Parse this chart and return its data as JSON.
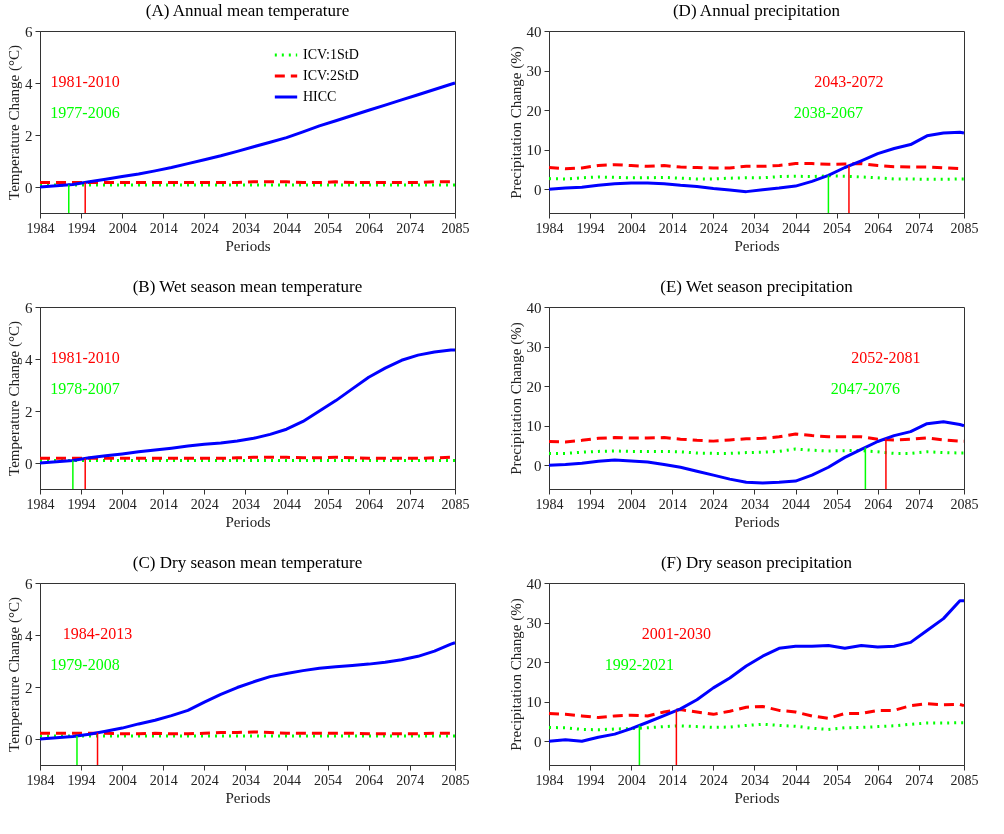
{
  "chart_data": [
    {
      "type": "line",
      "title": "(A) Annual mean temperature",
      "xlabel": "Periods",
      "ylabel": "Temperature Change (°C)",
      "x": [
        1984,
        1988,
        1992,
        1996,
        2000,
        2004,
        2008,
        2012,
        2016,
        2020,
        2024,
        2028,
        2032,
        2036,
        2040,
        2044,
        2048,
        2052,
        2056,
        2060,
        2064,
        2068,
        2072,
        2076,
        2080,
        2084,
        2085
      ],
      "xlim": [
        1984,
        2085
      ],
      "xticks": [
        1984,
        1994,
        2004,
        2014,
        2024,
        2034,
        2044,
        2054,
        2064,
        2074,
        2085
      ],
      "ylim": [
        -1,
        6
      ],
      "yticks": [
        0,
        2,
        4,
        6
      ],
      "legend": "top right",
      "series": [
        {
          "name": "ICV:1StD",
          "color": "#00ff00",
          "line_style": "dotted",
          "values": [
            0.08,
            0.08,
            0.08,
            0.08,
            0.08,
            0.08,
            0.08,
            0.08,
            0.08,
            0.08,
            0.08,
            0.08,
            0.08,
            0.08,
            0.08,
            0.08,
            0.08,
            0.08,
            0.08,
            0.08,
            0.08,
            0.08,
            0.08,
            0.08,
            0.08,
            0.08,
            0.08
          ]
        },
        {
          "name": "ICV:2StD",
          "color": "#ff0000",
          "line_style": "dashed",
          "values": [
            0.17,
            0.17,
            0.17,
            0.17,
            0.17,
            0.17,
            0.17,
            0.17,
            0.17,
            0.17,
            0.17,
            0.17,
            0.17,
            0.2,
            0.2,
            0.2,
            0.17,
            0.17,
            0.2,
            0.17,
            0.17,
            0.17,
            0.17,
            0.17,
            0.2,
            0.2,
            0.2
          ]
        },
        {
          "name": "HICC",
          "color": "#0000ff",
          "line_style": "solid",
          "values": [
            0,
            0.05,
            0.1,
            0.2,
            0.3,
            0.4,
            0.5,
            0.62,
            0.75,
            0.9,
            1.05,
            1.2,
            1.37,
            1.55,
            1.72,
            1.9,
            2.12,
            2.35,
            2.55,
            2.75,
            2.95,
            3.15,
            3.35,
            3.55,
            3.75,
            3.95,
            4.0
          ]
        }
      ],
      "ref_lines": [
        {
          "axis": "x",
          "value": 1991,
          "color": "#00ff00"
        },
        {
          "axis": "x",
          "value": 1995,
          "color": "#ff0000"
        }
      ],
      "annotations": [
        "1977-2006",
        "1981-2010"
      ]
    },
    {
      "type": "line",
      "title": "(D) Annual precipitation",
      "xlabel": "Periods",
      "ylabel": "Precipitation Change (%)",
      "x": [
        1984,
        1988,
        1992,
        1996,
        2000,
        2004,
        2008,
        2012,
        2016,
        2020,
        2024,
        2028,
        2032,
        2036,
        2040,
        2044,
        2048,
        2052,
        2056,
        2060,
        2064,
        2068,
        2072,
        2076,
        2080,
        2084,
        2085
      ],
      "xlim": [
        1984,
        2085
      ],
      "xticks": [
        1984,
        1994,
        2004,
        2014,
        2024,
        2034,
        2044,
        2054,
        2064,
        2074,
        2085
      ],
      "ylim": [
        -6,
        40
      ],
      "yticks": [
        0,
        10,
        20,
        30,
        40
      ],
      "series": [
        {
          "color": "#00ff00",
          "line_style": "dotted",
          "values": [
            2.7,
            2.6,
            2.9,
            3.1,
            3.0,
            2.9,
            2.9,
            3.0,
            2.8,
            2.6,
            2.6,
            2.8,
            2.9,
            2.9,
            3.2,
            3.3,
            3.2,
            3.4,
            3.3,
            3.1,
            2.9,
            2.6,
            2.6,
            2.5,
            2.5,
            2.6,
            2.6
          ]
        },
        {
          "color": "#ff0000",
          "line_style": "dashed",
          "values": [
            5.5,
            5.2,
            5.4,
            6.0,
            6.2,
            6.0,
            5.8,
            6.0,
            5.6,
            5.5,
            5.4,
            5.4,
            5.8,
            5.8,
            6.0,
            6.5,
            6.5,
            6.3,
            6.4,
            6.5,
            6.0,
            5.7,
            5.6,
            5.6,
            5.4,
            5.2,
            5.2
          ]
        },
        {
          "color": "#0000ff",
          "line_style": "solid",
          "values": [
            0,
            0.3,
            0.5,
            1.0,
            1.4,
            1.6,
            1.6,
            1.4,
            1.0,
            0.7,
            0.2,
            -0.2,
            -0.6,
            -0.1,
            0.3,
            0.8,
            2.0,
            3.5,
            5.5,
            7.2,
            9.0,
            10.3,
            11.3,
            13.5,
            14.2,
            14.4,
            14.2
          ]
        }
      ],
      "ref_lines": [
        {
          "axis": "x",
          "value": 2052,
          "color": "#00ff00"
        },
        {
          "axis": "x",
          "value": 2057,
          "color": "#ff0000"
        }
      ],
      "annotations": [
        "2038-2067",
        "2043-2072"
      ]
    },
    {
      "type": "line",
      "title": "(B) Wet season mean temperature",
      "xlabel": "Periods",
      "ylabel": "Temperature Change (°C)",
      "x": [
        1984,
        1988,
        1992,
        1996,
        2000,
        2004,
        2008,
        2012,
        2016,
        2020,
        2024,
        2028,
        2032,
        2036,
        2040,
        2044,
        2048,
        2052,
        2056,
        2060,
        2064,
        2068,
        2072,
        2076,
        2080,
        2084,
        2085
      ],
      "xlim": [
        1984,
        2085
      ],
      "xticks": [
        1984,
        1994,
        2004,
        2014,
        2024,
        2034,
        2044,
        2054,
        2064,
        2074,
        2085
      ],
      "ylim": [
        -1,
        6
      ],
      "yticks": [
        0,
        2,
        4,
        6
      ],
      "series": [
        {
          "color": "#00ff00",
          "line_style": "dotted",
          "values": [
            0.1,
            0.1,
            0.1,
            0.1,
            0.1,
            0.1,
            0.1,
            0.1,
            0.1,
            0.1,
            0.1,
            0.1,
            0.1,
            0.1,
            0.1,
            0.1,
            0.1,
            0.1,
            0.1,
            0.1,
            0.1,
            0.1,
            0.1,
            0.1,
            0.1,
            0.1,
            0.1
          ]
        },
        {
          "color": "#ff0000",
          "line_style": "dashed",
          "values": [
            0.18,
            0.18,
            0.18,
            0.18,
            0.18,
            0.18,
            0.18,
            0.18,
            0.18,
            0.18,
            0.18,
            0.18,
            0.2,
            0.22,
            0.22,
            0.22,
            0.2,
            0.2,
            0.22,
            0.2,
            0.18,
            0.18,
            0.18,
            0.18,
            0.2,
            0.22,
            0.22
          ]
        },
        {
          "color": "#0000ff",
          "line_style": "solid",
          "values": [
            0,
            0.05,
            0.1,
            0.2,
            0.28,
            0.35,
            0.43,
            0.5,
            0.57,
            0.65,
            0.72,
            0.77,
            0.85,
            0.95,
            1.1,
            1.3,
            1.6,
            2.0,
            2.4,
            2.85,
            3.3,
            3.65,
            3.95,
            4.15,
            4.27,
            4.35,
            4.35
          ]
        }
      ],
      "ref_lines": [
        {
          "axis": "x",
          "value": 1992,
          "color": "#00ff00"
        },
        {
          "axis": "x",
          "value": 1995,
          "color": "#ff0000"
        }
      ],
      "annotations": [
        "1978-2007",
        "1981-2010"
      ]
    },
    {
      "type": "line",
      "title": "(E) Wet season precipitation",
      "xlabel": "Periods",
      "ylabel": "Precipitation Change (%)",
      "x": [
        1984,
        1988,
        1992,
        1996,
        2000,
        2004,
        2008,
        2012,
        2016,
        2020,
        2024,
        2028,
        2032,
        2036,
        2040,
        2044,
        2048,
        2052,
        2056,
        2060,
        2064,
        2068,
        2072,
        2076,
        2080,
        2084,
        2085
      ],
      "xlim": [
        1984,
        2085
      ],
      "xticks": [
        1984,
        1994,
        2004,
        2014,
        2024,
        2034,
        2044,
        2054,
        2064,
        2074,
        2085
      ],
      "ylim": [
        -6,
        40
      ],
      "yticks": [
        0,
        10,
        20,
        30,
        40
      ],
      "series": [
        {
          "color": "#00ff00",
          "line_style": "dotted",
          "values": [
            3.0,
            3.0,
            3.3,
            3.5,
            3.6,
            3.5,
            3.5,
            3.5,
            3.4,
            3.1,
            3.0,
            3.0,
            3.2,
            3.3,
            3.5,
            4.1,
            3.8,
            3.6,
            3.7,
            3.7,
            3.4,
            3.0,
            3.0,
            3.4,
            3.2,
            3.1,
            3.1
          ]
        },
        {
          "color": "#ff0000",
          "line_style": "dashed",
          "values": [
            6.0,
            5.9,
            6.3,
            6.8,
            7.0,
            6.9,
            6.9,
            7.0,
            6.6,
            6.3,
            6.1,
            6.4,
            6.7,
            6.8,
            7.2,
            7.9,
            7.5,
            7.2,
            7.2,
            7.2,
            6.6,
            6.4,
            6.6,
            6.9,
            6.4,
            6.1,
            6.1
          ]
        },
        {
          "color": "#0000ff",
          "line_style": "solid",
          "values": [
            0,
            0.2,
            0.5,
            1.0,
            1.3,
            1.1,
            0.8,
            0.2,
            -0.5,
            -1.5,
            -2.5,
            -3.5,
            -4.3,
            -4.5,
            -4.3,
            -4.0,
            -2.5,
            -0.5,
            2.0,
            4.0,
            6.0,
            7.5,
            8.5,
            10.5,
            11.0,
            10.3,
            10.0
          ]
        }
      ],
      "ref_lines": [
        {
          "axis": "x",
          "value": 2061,
          "color": "#00ff00"
        },
        {
          "axis": "x",
          "value": 2066,
          "color": "#ff0000"
        }
      ],
      "annotations": [
        "2047-2076",
        "2052-2081"
      ]
    },
    {
      "type": "line",
      "title": "(C) Dry season mean temperature",
      "xlabel": "Periods",
      "ylabel": "Temperature Change (°C)",
      "x": [
        1984,
        1988,
        1992,
        1996,
        2000,
        2004,
        2008,
        2012,
        2016,
        2020,
        2024,
        2028,
        2032,
        2036,
        2040,
        2044,
        2048,
        2052,
        2056,
        2060,
        2064,
        2068,
        2072,
        2076,
        2080,
        2084,
        2085
      ],
      "xlim": [
        1984,
        2085
      ],
      "xticks": [
        1984,
        1994,
        2004,
        2014,
        2024,
        2034,
        2044,
        2054,
        2064,
        2074,
        2085
      ],
      "ylim": [
        -1,
        6
      ],
      "yticks": [
        0,
        2,
        4,
        6
      ],
      "series": [
        {
          "color": "#00ff00",
          "line_style": "dotted",
          "values": [
            0.12,
            0.12,
            0.12,
            0.12,
            0.12,
            0.12,
            0.12,
            0.12,
            0.12,
            0.12,
            0.12,
            0.12,
            0.12,
            0.12,
            0.12,
            0.12,
            0.12,
            0.12,
            0.12,
            0.12,
            0.12,
            0.12,
            0.12,
            0.12,
            0.12,
            0.12,
            0.12
          ]
        },
        {
          "color": "#ff0000",
          "line_style": "dashed",
          "values": [
            0.22,
            0.22,
            0.22,
            0.22,
            0.22,
            0.2,
            0.2,
            0.22,
            0.2,
            0.2,
            0.22,
            0.25,
            0.25,
            0.27,
            0.25,
            0.22,
            0.22,
            0.22,
            0.22,
            0.22,
            0.2,
            0.2,
            0.2,
            0.2,
            0.22,
            0.22,
            0.22
          ]
        },
        {
          "color": "#0000ff",
          "line_style": "solid",
          "values": [
            0,
            0.05,
            0.1,
            0.18,
            0.3,
            0.42,
            0.58,
            0.72,
            0.9,
            1.1,
            1.42,
            1.72,
            1.98,
            2.2,
            2.4,
            2.52,
            2.63,
            2.72,
            2.78,
            2.83,
            2.88,
            2.95,
            3.05,
            3.18,
            3.38,
            3.65,
            3.7
          ]
        }
      ],
      "ref_lines": [
        {
          "axis": "x",
          "value": 1993,
          "color": "#00ff00"
        },
        {
          "axis": "x",
          "value": 1998,
          "color": "#ff0000"
        }
      ],
      "annotations": [
        "1979-2008",
        "1984-2013"
      ]
    },
    {
      "type": "line",
      "title": "(F) Dry season precipitation",
      "xlabel": "Periods",
      "ylabel": "Precipitation Change (%)",
      "x": [
        1984,
        1988,
        1992,
        1996,
        2000,
        2004,
        2008,
        2012,
        2016,
        2020,
        2024,
        2028,
        2032,
        2036,
        2040,
        2044,
        2048,
        2052,
        2056,
        2060,
        2064,
        2068,
        2072,
        2076,
        2080,
        2084,
        2085
      ],
      "xlim": [
        1984,
        2085
      ],
      "xticks": [
        1984,
        1994,
        2004,
        2014,
        2024,
        2034,
        2044,
        2054,
        2064,
        2074,
        2085
      ],
      "ylim": [
        -6,
        40
      ],
      "yticks": [
        0,
        10,
        20,
        30,
        40
      ],
      "series": [
        {
          "color": "#00ff00",
          "line_style": "dotted",
          "values": [
            3.5,
            3.4,
            3.0,
            2.9,
            3.1,
            3.2,
            3.4,
            3.7,
            3.9,
            3.7,
            3.5,
            3.6,
            4.0,
            4.3,
            4.0,
            3.8,
            3.3,
            3.0,
            3.4,
            3.5,
            3.7,
            3.9,
            4.3,
            4.6,
            4.6,
            4.7,
            4.7
          ]
        },
        {
          "color": "#ff0000",
          "line_style": "dashed",
          "values": [
            7.0,
            6.8,
            6.4,
            6.0,
            6.4,
            6.6,
            6.4,
            7.4,
            8.0,
            7.4,
            6.8,
            7.6,
            8.6,
            8.8,
            7.8,
            7.4,
            6.4,
            5.8,
            7.0,
            7.0,
            7.8,
            7.8,
            9.0,
            9.5,
            9.2,
            9.3,
            9.0
          ]
        },
        {
          "color": "#0000ff",
          "line_style": "solid",
          "values": [
            0,
            0.4,
            0.0,
            1.0,
            1.8,
            3.2,
            4.8,
            6.5,
            8.2,
            10.5,
            13.5,
            16,
            19,
            21.5,
            23.5,
            24,
            24,
            24.2,
            23.5,
            24.2,
            23.8,
            24,
            25,
            28,
            31,
            35.5,
            35.5
          ]
        }
      ],
      "ref_lines": [
        {
          "axis": "x",
          "value": 2006,
          "color": "#00ff00"
        },
        {
          "axis": "x",
          "value": 2015,
          "color": "#ff0000"
        }
      ],
      "annotations": [
        "1992-2021",
        "2001-2030"
      ]
    }
  ]
}
